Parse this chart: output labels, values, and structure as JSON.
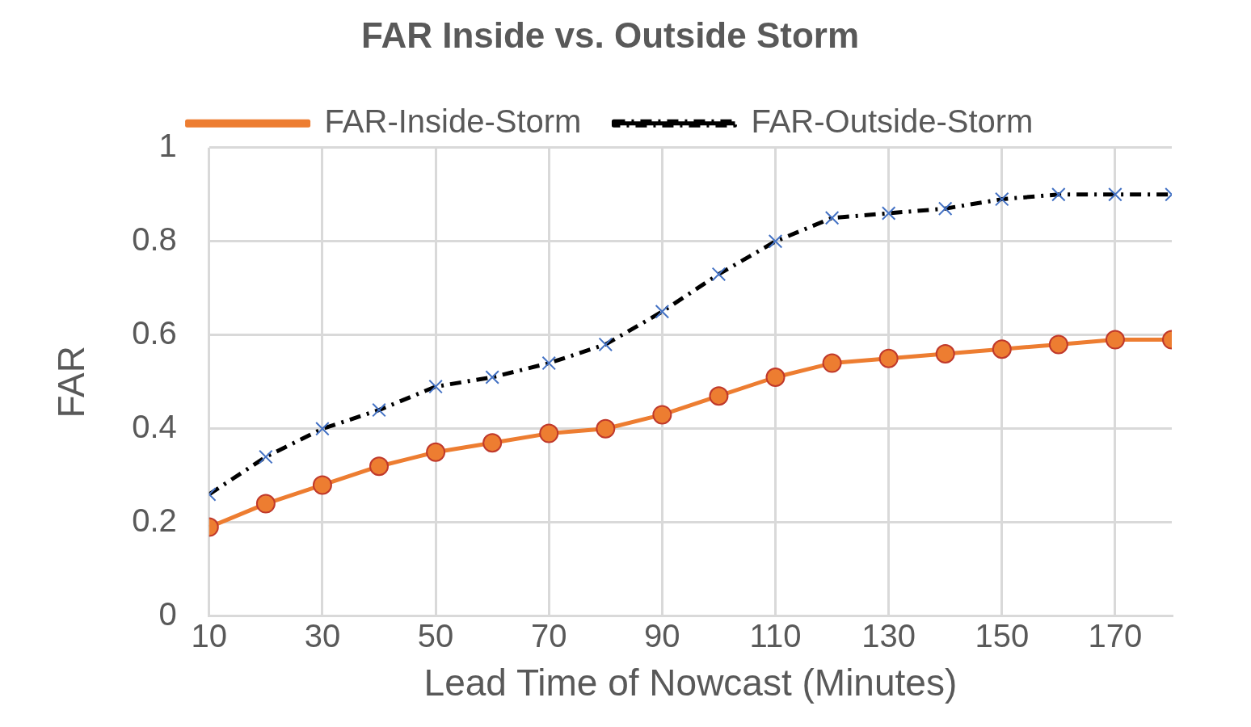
{
  "chart_data": {
    "type": "line",
    "title": "FAR Inside vs. Outside Storm",
    "xlabel": "Lead Time of Nowcast (Minutes)",
    "ylabel": "FAR",
    "x": [
      10,
      20,
      30,
      40,
      50,
      60,
      70,
      80,
      90,
      100,
      110,
      120,
      130,
      140,
      150,
      160,
      170,
      180
    ],
    "series": [
      {
        "name": "FAR-Inside-Storm",
        "color": "#ed7d31",
        "marker": "circle",
        "line_style": "solid",
        "values": [
          0.19,
          0.24,
          0.28,
          0.32,
          0.35,
          0.37,
          0.39,
          0.4,
          0.43,
          0.47,
          0.51,
          0.54,
          0.55,
          0.56,
          0.57,
          0.58,
          0.59,
          0.59
        ]
      },
      {
        "name": "FAR-Outside-Storm",
        "color": "#000000",
        "marker": "cross",
        "line_style": "dashed",
        "values": [
          0.26,
          0.34,
          0.4,
          0.44,
          0.49,
          0.51,
          0.54,
          0.58,
          0.65,
          0.73,
          0.8,
          0.85,
          0.86,
          0.87,
          0.89,
          0.9,
          0.9,
          0.9
        ]
      }
    ],
    "xlim": [
      10,
      180
    ],
    "xticks": [
      10,
      30,
      50,
      70,
      90,
      110,
      130,
      150,
      170
    ],
    "ylim": [
      0,
      1
    ],
    "yticks": [
      0,
      0.2,
      0.4,
      0.6,
      0.8,
      1
    ],
    "grid": true,
    "legend": "top"
  }
}
